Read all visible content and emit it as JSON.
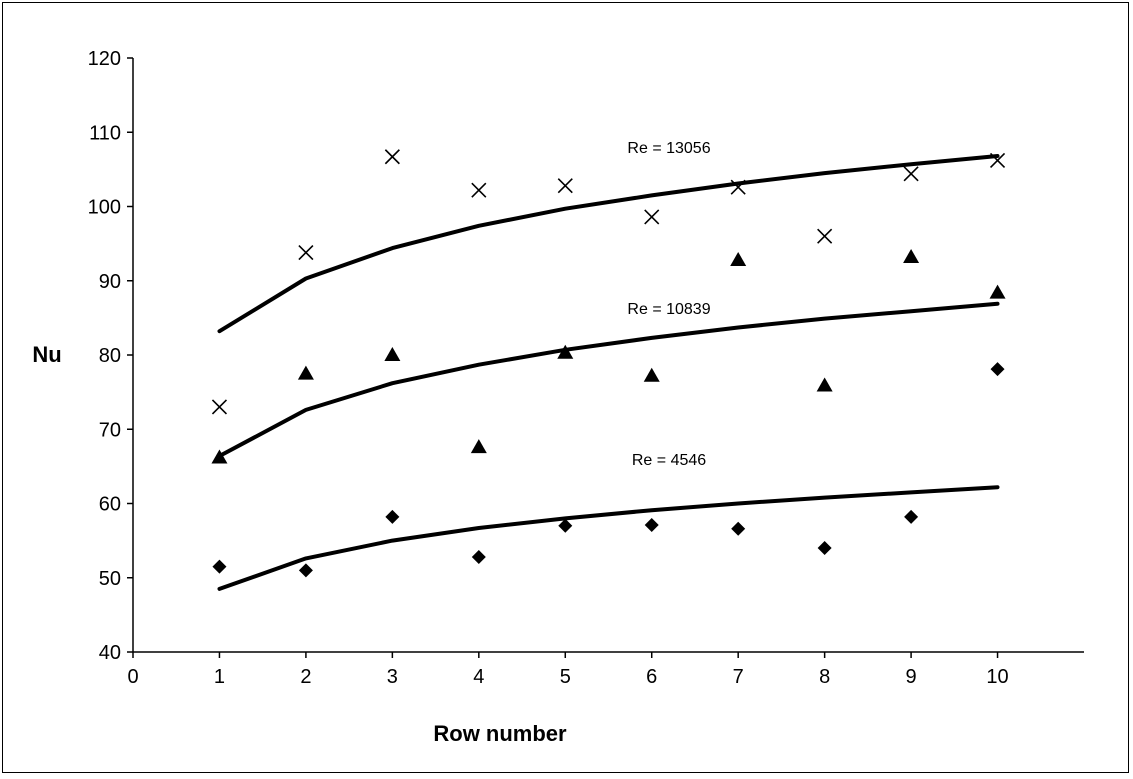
{
  "chart_data": {
    "type": "scatter",
    "title": "",
    "xlabel": "Row number",
    "ylabel": "Nu",
    "xlim": [
      0,
      11
    ],
    "ylim": [
      40,
      120
    ],
    "xticks": [
      0,
      1,
      2,
      3,
      4,
      5,
      6,
      7,
      8,
      9,
      10
    ],
    "yticks": [
      40,
      50,
      60,
      70,
      80,
      90,
      100,
      110,
      120
    ],
    "grid": false,
    "legend": "none",
    "series": [
      {
        "marker": "diamond",
        "x": [
          1,
          2,
          3,
          4,
          5,
          6,
          7,
          8,
          9,
          10
        ],
        "y": [
          51.5,
          51.0,
          58.2,
          52.8,
          57.0,
          57.1,
          56.6,
          54.0,
          58.2,
          78.1
        ]
      },
      {
        "marker": "triangle",
        "x": [
          1,
          2,
          3,
          4,
          5,
          6,
          7,
          8,
          9,
          10
        ],
        "y": [
          66.2,
          77.5,
          80.0,
          67.6,
          80.3,
          77.2,
          92.8,
          75.9,
          93.2,
          88.4
        ]
      },
      {
        "marker": "cross",
        "x": [
          1,
          2,
          3,
          4,
          5,
          6,
          7,
          8,
          9,
          10
        ],
        "y": [
          73.0,
          93.8,
          106.7,
          102.2,
          102.8,
          98.6,
          102.6,
          96.0,
          104.4,
          106.2
        ]
      }
    ],
    "fit_curves": [
      {
        "label": "Re = 4546",
        "x": [
          1,
          2,
          3,
          4,
          5,
          6,
          7,
          8,
          9,
          10
        ],
        "y": [
          48.5,
          52.6,
          55.0,
          56.7,
          58.0,
          59.1,
          60.0,
          60.8,
          61.5,
          62.2
        ]
      },
      {
        "label": "Re = 10839",
        "x": [
          1,
          2,
          3,
          4,
          5,
          6,
          7,
          8,
          9,
          10
        ],
        "y": [
          66.4,
          72.6,
          76.2,
          78.7,
          80.7,
          82.3,
          83.7,
          84.9,
          85.9,
          86.9
        ]
      },
      {
        "label": "Re = 13056",
        "x": [
          1,
          2,
          3,
          4,
          5,
          6,
          7,
          8,
          9,
          10
        ],
        "y": [
          83.2,
          90.3,
          94.4,
          97.4,
          99.7,
          101.5,
          103.1,
          104.5,
          105.7,
          106.8
        ]
      }
    ],
    "annotations": [
      {
        "text": "Re = 13056",
        "x": 6.2,
        "y": 107.2
      },
      {
        "text": "Re = 10839",
        "x": 6.2,
        "y": 85.5
      },
      {
        "text": "Re = 4546",
        "x": 6.2,
        "y": 65.2
      }
    ],
    "colors": {
      "markers": "#000000",
      "lines": "#000000",
      "background": "#ffffff"
    }
  }
}
